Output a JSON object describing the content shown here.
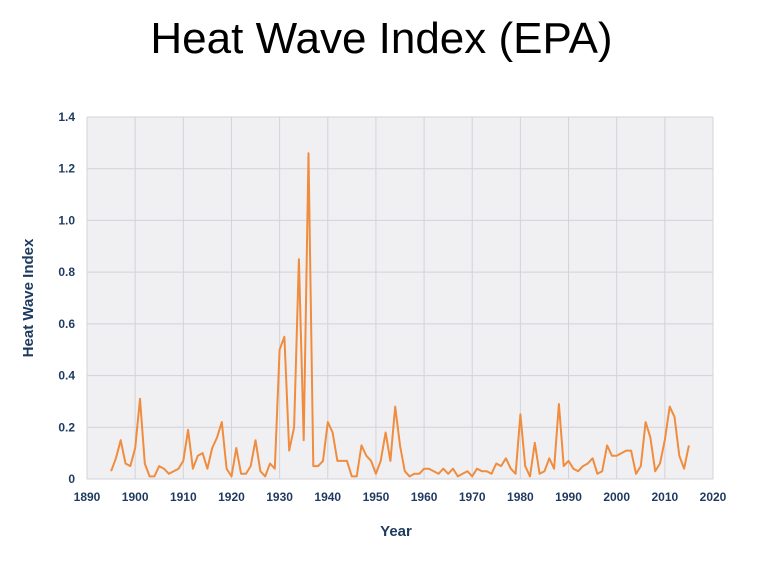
{
  "title": "Heat Wave Index (EPA)",
  "colors": {
    "line": "#f08c3e",
    "plot_bg": "#f0f0f3",
    "grid": "#d3d3d8",
    "label": "#1f3a5f"
  },
  "chart_data": {
    "type": "line",
    "title": "Heat Wave Index (EPA)",
    "xlabel": "Year",
    "ylabel": "Heat Wave Index",
    "xlim": [
      1890,
      2020
    ],
    "ylim": [
      0,
      1.4
    ],
    "xticks": [
      "1890",
      "1900",
      "1910",
      "1920",
      "1930",
      "1940",
      "1950",
      "1960",
      "1970",
      "1980",
      "1990",
      "2000",
      "2010",
      "2020"
    ],
    "yticks": [
      "0",
      "0.2",
      "0.4",
      "0.6",
      "0.8",
      "1.0",
      "1.2",
      "1.4"
    ],
    "grid": true,
    "series": [
      {
        "x": [
          1895,
          1896,
          1897,
          1898,
          1899,
          1900,
          1901,
          1902,
          1903,
          1904,
          1905,
          1906,
          1907,
          1908,
          1909,
          1910,
          1911,
          1912,
          1913,
          1914,
          1915,
          1916,
          1917,
          1918,
          1919,
          1920,
          1921,
          1922,
          1923,
          1924,
          1925,
          1926,
          1927,
          1928,
          1929,
          1930,
          1931,
          1932,
          1933,
          1934,
          1935,
          1936,
          1937,
          1938,
          1939,
          1940,
          1941,
          1942,
          1943,
          1944,
          1945,
          1946,
          1947,
          1948,
          1949,
          1950,
          1951,
          1952,
          1953,
          1954,
          1955,
          1956,
          1957,
          1958,
          1959,
          1960,
          1961,
          1962,
          1963,
          1964,
          1965,
          1966,
          1967,
          1968,
          1969,
          1970,
          1971,
          1972,
          1973,
          1974,
          1975,
          1976,
          1977,
          1978,
          1979,
          1980,
          1981,
          1982,
          1983,
          1984,
          1985,
          1986,
          1987,
          1988,
          1989,
          1990,
          1991,
          1992,
          1993,
          1994,
          1995,
          1996,
          1997,
          1998,
          1999,
          2000,
          2001,
          2002,
          2003,
          2004,
          2005,
          2006,
          2007,
          2008,
          2009,
          2010,
          2011,
          2012,
          2013,
          2014,
          2015
        ],
        "y": [
          0.03,
          0.08,
          0.15,
          0.06,
          0.05,
          0.12,
          0.31,
          0.06,
          0.01,
          0.01,
          0.05,
          0.04,
          0.02,
          0.03,
          0.04,
          0.07,
          0.19,
          0.04,
          0.09,
          0.1,
          0.04,
          0.12,
          0.16,
          0.22,
          0.04,
          0.01,
          0.12,
          0.02,
          0.02,
          0.05,
          0.15,
          0.03,
          0.01,
          0.06,
          0.04,
          0.5,
          0.55,
          0.11,
          0.2,
          0.85,
          0.15,
          1.26,
          0.05,
          0.05,
          0.07,
          0.22,
          0.18,
          0.07,
          0.07,
          0.07,
          0.01,
          0.01,
          0.13,
          0.09,
          0.07,
          0.02,
          0.07,
          0.18,
          0.07,
          0.28,
          0.13,
          0.03,
          0.01,
          0.02,
          0.02,
          0.04,
          0.04,
          0.03,
          0.02,
          0.04,
          0.02,
          0.04,
          0.01,
          0.02,
          0.03,
          0.01,
          0.04,
          0.03,
          0.03,
          0.02,
          0.06,
          0.05,
          0.08,
          0.04,
          0.02,
          0.25,
          0.05,
          0.01,
          0.14,
          0.02,
          0.03,
          0.08,
          0.04,
          0.29,
          0.05,
          0.07,
          0.04,
          0.03,
          0.05,
          0.06,
          0.08,
          0.02,
          0.03,
          0.13,
          0.09,
          0.09,
          0.1,
          0.11,
          0.11,
          0.02,
          0.05,
          0.22,
          0.16,
          0.03,
          0.06,
          0.15,
          0.28,
          0.24,
          0.09,
          0.04,
          0.13
        ]
      }
    ]
  }
}
